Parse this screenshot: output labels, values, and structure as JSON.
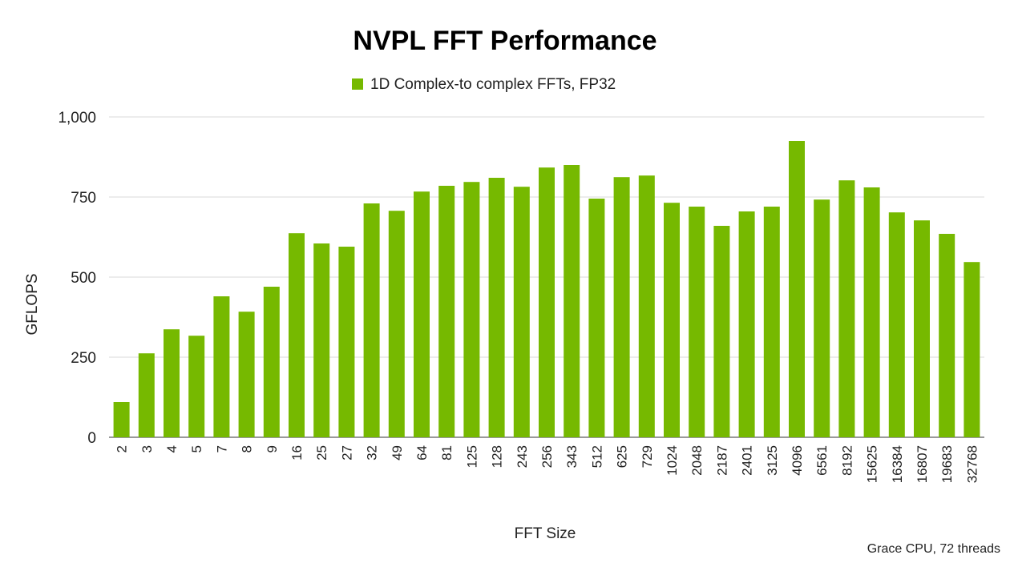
{
  "chart_data": {
    "type": "bar",
    "title": "NVPL FFT Performance",
    "xlabel": "FFT Size",
    "ylabel": "GFLOPS",
    "ylim": [
      0,
      1000
    ],
    "yticks": [
      0,
      250,
      500,
      750,
      1000
    ],
    "ytick_labels": [
      "0",
      "250",
      "500",
      "750",
      "1,000"
    ],
    "grid": true,
    "legend_position": "top",
    "footnote": "Grace CPU, 72 threads",
    "categories": [
      "2",
      "3",
      "4",
      "5",
      "7",
      "8",
      "9",
      "16",
      "25",
      "27",
      "32",
      "49",
      "64",
      "81",
      "125",
      "128",
      "243",
      "256",
      "343",
      "512",
      "625",
      "729",
      "1024",
      "2048",
      "2187",
      "2401",
      "3125",
      "4096",
      "6561",
      "8192",
      "15625",
      "16384",
      "16807",
      "19683",
      "32768"
    ],
    "series": [
      {
        "name": "1D Complex-to complex FFTs, FP32",
        "color": "#76b900",
        "values": [
          110,
          262,
          337,
          317,
          440,
          392,
          470,
          637,
          605,
          595,
          730,
          707,
          767,
          785,
          797,
          810,
          782,
          842,
          850,
          745,
          812,
          817,
          732,
          720,
          660,
          705,
          720,
          925,
          742,
          802,
          780,
          702,
          677,
          635,
          547
        ]
      }
    ]
  }
}
